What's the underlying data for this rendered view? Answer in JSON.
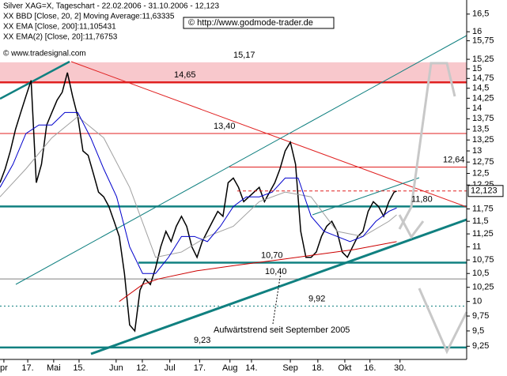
{
  "chart_data": {
    "type": "line",
    "title": "Silver XAG=X, Tageschart - 22.02.2006 - 31.10.2006 - 12,123",
    "source": "© www.tradesignal.com",
    "watermark": "© http://www.godmode-trader.de",
    "annotation": "Aufwärtstrend seit September 2005",
    "log_scale": true,
    "xlim": [
      0,
      180
    ],
    "ylim": [
      9.04,
      16.91
    ],
    "current": {
      "value": 12.123,
      "label": "12,123"
    },
    "xticks": [
      {
        "value": 1.5,
        "label": "pr"
      },
      {
        "value": 10.7,
        "label": "17."
      },
      {
        "value": 20.7,
        "label": "Mai"
      },
      {
        "value": 30.5,
        "label": "15."
      },
      {
        "value": 44.8,
        "label": "Jun"
      },
      {
        "value": 54.9,
        "label": "12."
      },
      {
        "value": 65.5,
        "label": "Jul"
      },
      {
        "value": 77,
        "label": "17."
      },
      {
        "value": 88.7,
        "label": "Aug"
      },
      {
        "value": 97,
        "label": "14."
      },
      {
        "value": 112,
        "label": "Sep"
      },
      {
        "value": 122.6,
        "label": "18."
      },
      {
        "value": 133,
        "label": "Okt"
      },
      {
        "value": 142.7,
        "label": "16."
      },
      {
        "value": 154.3,
        "label": "30."
      }
    ],
    "yticks": [
      {
        "value": 16.5,
        "label": "16,5"
      },
      {
        "value": 16,
        "label": "16"
      },
      {
        "value": 15.75,
        "label": "15,75"
      },
      {
        "value": 15.25,
        "label": "15,25"
      },
      {
        "value": 15,
        "label": "15"
      },
      {
        "value": 14.75,
        "label": "14,75"
      },
      {
        "value": 14.5,
        "label": "14,5"
      },
      {
        "value": 14.25,
        "label": "14,25"
      },
      {
        "value": 14,
        "label": "14"
      },
      {
        "value": 13.75,
        "label": "13,75"
      },
      {
        "value": 13.5,
        "label": "13,5"
      },
      {
        "value": 13.25,
        "label": "13,25"
      },
      {
        "value": 13,
        "label": "13"
      },
      {
        "value": 12.75,
        "label": "12,75"
      },
      {
        "value": 12.5,
        "label": "12,5"
      },
      {
        "value": 12.25,
        "label": "12,25"
      },
      {
        "value": 11.75,
        "label": "11,75"
      },
      {
        "value": 11.5,
        "label": "11,5"
      },
      {
        "value": 11.25,
        "label": "11,25"
      },
      {
        "value": 11,
        "label": "11"
      },
      {
        "value": 10.75,
        "label": "10,75"
      },
      {
        "value": 10.5,
        "label": "10,5"
      },
      {
        "value": 10.25,
        "label": "10,25"
      },
      {
        "value": 10,
        "label": "10"
      },
      {
        "value": 9.75,
        "label": "9,75"
      },
      {
        "value": 9.5,
        "label": "9,5"
      },
      {
        "value": 9.25,
        "label": "9,25"
      }
    ],
    "levels": [
      {
        "value": 15.17,
        "label": "15,17",
        "color": "#e02020",
        "style": "band"
      },
      {
        "value": 14.65,
        "label": "14,65",
        "color": "#e02020",
        "style": "thick"
      },
      {
        "value": 13.4,
        "label": "13,40",
        "color": "#e02020",
        "style": "thin"
      },
      {
        "value": 12.64,
        "label": "12,64",
        "color": "#e02020",
        "style": "thin"
      },
      {
        "value": 11.8,
        "label": "11,80",
        "color": "#108080",
        "style": "thick"
      },
      {
        "value": 10.7,
        "label": "10,70",
        "color": "#108080",
        "style": "thick"
      },
      {
        "value": 10.4,
        "label": "10,40",
        "color": "#808080",
        "style": "thin"
      },
      {
        "value": 9.92,
        "label": "9,92",
        "color": "#108080",
        "style": "dotted"
      },
      {
        "value": 9.23,
        "label": "9,23",
        "color": "#108080",
        "style": "thick"
      }
    ],
    "series": [
      {
        "name": "Silver XAG=X",
        "color": "#000000",
        "x": [
          0,
          2,
          4,
          6,
          8,
          10,
          12,
          14,
          16,
          18,
          20,
          22,
          24,
          26,
          28,
          30,
          32,
          34,
          36,
          38,
          40,
          42,
          44,
          46,
          48,
          50,
          52,
          54,
          56,
          58,
          60,
          62,
          64,
          66,
          68,
          70,
          72,
          74,
          76,
          78,
          80,
          82,
          84,
          86,
          88,
          90,
          92,
          94,
          96,
          98,
          100,
          102,
          104,
          106,
          108,
          110,
          112,
          114,
          116,
          118,
          120,
          122,
          124,
          126,
          128,
          130,
          132,
          134,
          136,
          138,
          140,
          142,
          144,
          146,
          148,
          150,
          152,
          153
        ],
        "values": [
          12.3,
          12.6,
          13.0,
          13.5,
          13.9,
          14.3,
          14.7,
          12.3,
          12.7,
          13.6,
          13.9,
          14.2,
          14.4,
          14.9,
          14.3,
          13.8,
          13.0,
          12.9,
          12.5,
          12.1,
          12.0,
          11.8,
          11.5,
          11.2,
          10.5,
          9.6,
          9.5,
          10.2,
          10.4,
          10.3,
          10.6,
          11.0,
          11.3,
          11.1,
          11.4,
          11.6,
          11.4,
          11.0,
          10.8,
          11.1,
          11.3,
          11.5,
          11.7,
          11.6,
          12.3,
          12.4,
          12.2,
          11.9,
          12.0,
          12.1,
          12.2,
          11.9,
          12.1,
          12.3,
          12.6,
          13.0,
          13.2,
          12.7,
          11.3,
          10.8,
          10.8,
          10.9,
          11.2,
          11.4,
          11.5,
          11.3,
          10.9,
          10.8,
          11.0,
          11.2,
          11.3,
          11.7,
          11.9,
          11.8,
          11.6,
          11.9,
          12.1,
          12.12
        ]
      },
      {
        "name": "XX BBD [Close, 20, 2] Moving Average:11,63335",
        "color": "#a0a0a0",
        "x": [
          0,
          10,
          20,
          30,
          40,
          50,
          60,
          70,
          80,
          90,
          100,
          110,
          120,
          130,
          140,
          150,
          153
        ],
        "values": [
          12.0,
          12.6,
          13.3,
          13.8,
          13.3,
          12.2,
          10.8,
          10.9,
          11.2,
          11.4,
          11.9,
          12.1,
          12.0,
          11.3,
          11.2,
          11.5,
          11.63
        ]
      },
      {
        "name": "XX EMA [Close, 200]:11,105431",
        "color": "#cc0000",
        "x": [
          46,
          55,
          61,
          76,
          91,
          107,
          122,
          137,
          153
        ],
        "values": [
          10.0,
          10.3,
          10.4,
          10.55,
          10.65,
          10.75,
          10.85,
          10.95,
          11.1
        ]
      },
      {
        "name": "XX EMA(2) [Close, 20]:11,76753",
        "color": "#0000cc",
        "x": [
          0,
          5,
          10,
          15,
          20,
          25,
          30,
          35,
          40,
          45,
          50,
          55,
          60,
          65,
          70,
          75,
          80,
          85,
          90,
          95,
          100,
          105,
          110,
          115,
          120,
          125,
          130,
          135,
          140,
          145,
          150,
          153
        ],
        "values": [
          12.2,
          12.7,
          13.4,
          13.6,
          13.6,
          13.9,
          13.9,
          13.3,
          12.6,
          12.0,
          11.0,
          10.5,
          10.5,
          10.8,
          11.2,
          11.2,
          11.1,
          11.4,
          11.8,
          12.0,
          12.0,
          12.1,
          12.4,
          12.4,
          11.6,
          11.3,
          11.2,
          11.1,
          11.2,
          11.5,
          11.7,
          11.77
        ]
      }
    ]
  }
}
